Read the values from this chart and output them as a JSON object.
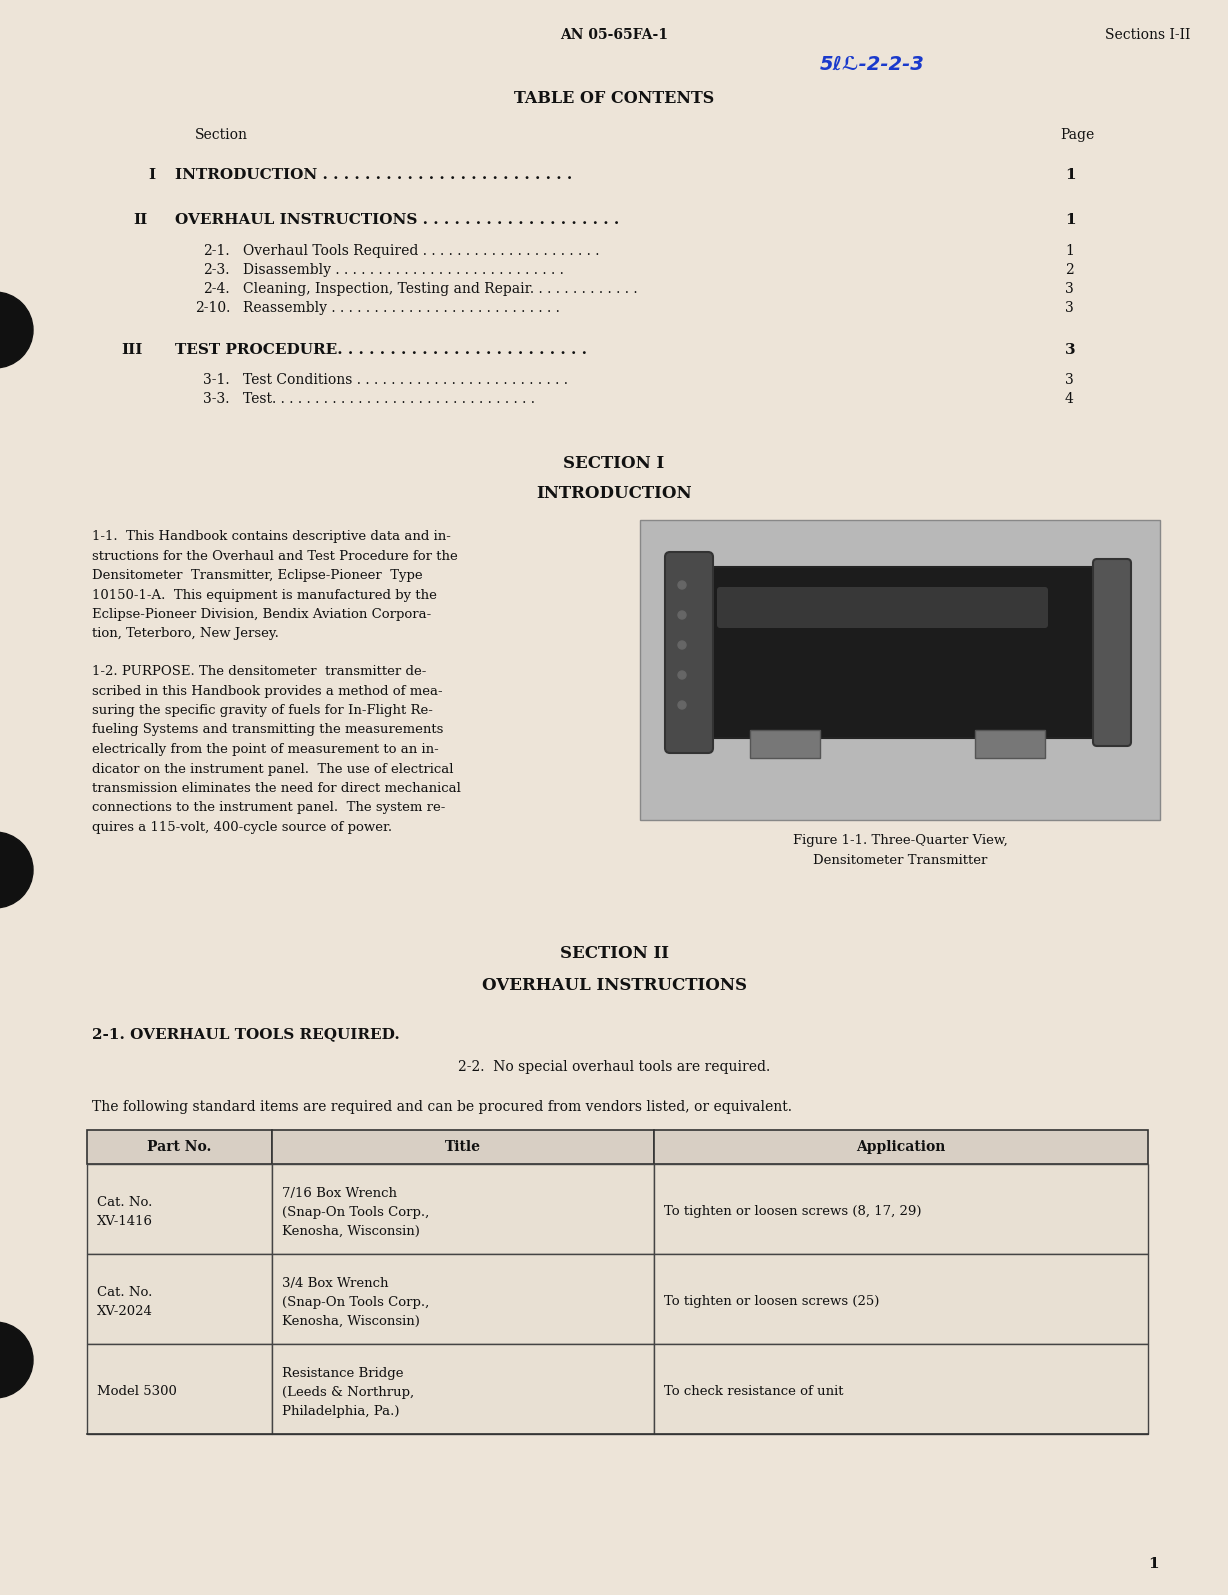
{
  "bg_color": "#ede4d8",
  "text_color": "#1a1a1a",
  "header_doc_num": "AN 05-65FA-1",
  "header_sections": "Sections I-II",
  "handwritten": "5ℓ‒1-2-2-3",
  "toc_title": "TABLE OF CONTENTS",
  "toc_section_label": "Section",
  "toc_page_label": "Page",
  "section1_heading": "SECTION I",
  "section1_subheading": "INTRODUCTION",
  "fig_caption_1": "Figure 1-1. Three-Quarter View,",
  "fig_caption_2": "Densitometer Transmitter",
  "section2_heading": "SECTION II",
  "section2_subheading": "OVERHAUL INSTRUCTIONS",
  "para_2_1_heading": "2-1. OVERHAUL TOOLS REQUIRED.",
  "para_2_2": "2-2.  No special overhaul tools are required.",
  "tools_intro": "The following standard items are required and can be procured from vendors listed, or equivalent.",
  "table_headers": [
    "Part No.",
    "Title",
    "Application"
  ],
  "table_row1_col1": "Cat. No.\nXV-1416",
  "table_row1_col2": "7/16 Box Wrench\n(Snap-On Tools Corp.,\nKenosha, Wisconsin)",
  "table_row1_col3": "To tighten or loosen screws (8, 17, 29)",
  "table_row2_col1": "Cat. No.\nXV-2024",
  "table_row2_col2": "3/4 Box Wrench\n(Snap-On Tools Corp.,\nKenosha, Wisconsin)",
  "table_row2_col3": "To tighten or loosen screws (25)",
  "table_row3_col1": "Model 5300",
  "table_row3_col2": "Resistance Bridge\n(Leeds & Northrup,\nPhiladelphia, Pa.)",
  "table_row3_col3": "To check resistance of unit",
  "page_num": "1",
  "para1_lines": [
    "1-1.  This Handbook contains descriptive data and in-",
    "structions for the Overhaul and Test Procedure for the",
    "Densitometer  Transmitter, Eclipse-Pioneer  Type",
    "10150-1-A.  This equipment is manufactured by the",
    "Eclipse-Pioneer Division, Bendix Aviation Corpora-",
    "tion, Teterboro, New Jersey."
  ],
  "para2_lines": [
    "1-2. PURPOSE. The densitometer  transmitter de-",
    "scribed in this Handbook provides a method of mea-",
    "suring the specific gravity of fuels for In-Flight Re-",
    "fueling Systems and transmitting the measurements",
    "electrically from the point of measurement to an in-",
    "dicator on the instrument panel.  The use of electrical",
    "transmission eliminates the need for direct mechanical",
    "connections to the instrument panel.  The system re-",
    "quires a 115-volt, 400-cycle source of power."
  ]
}
